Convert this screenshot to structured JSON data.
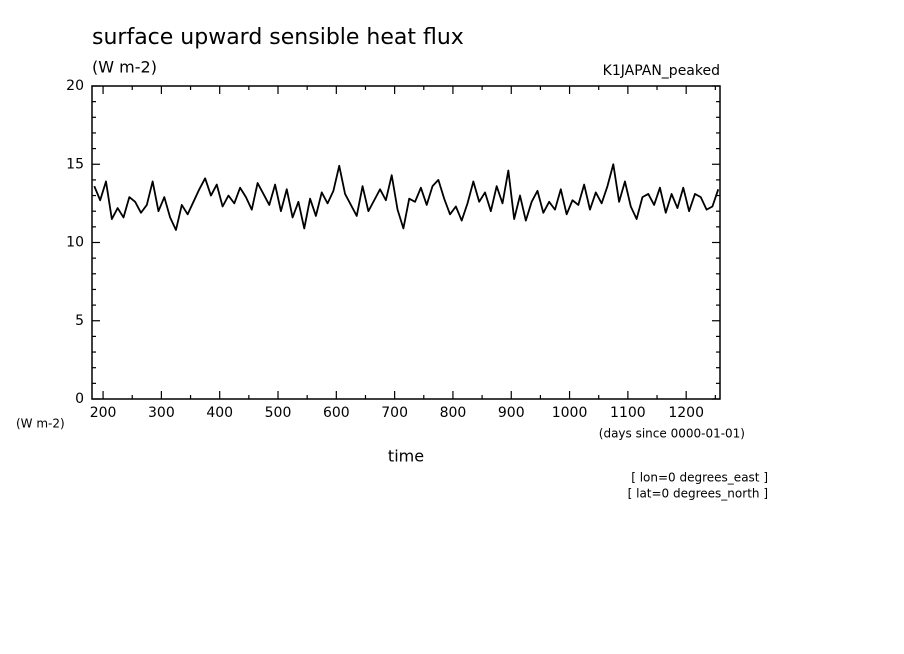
{
  "chart_data": {
    "type": "line",
    "title": "surface upward sensible heat flux",
    "subtitle": "(W m-2)",
    "annotation_right": "K1JAPAN_peaked",
    "ylabel": "(W m-2)",
    "xunits": "(days since 0000-01-01)",
    "xlabel": "time",
    "notes": [
      "[ lon=0 degrees_east ]",
      "[ lat=0 degrees_north ]"
    ],
    "color": "#000000",
    "xlim": [
      181,
      1258
    ],
    "ylim": [
      0,
      20
    ],
    "xticks": [
      200,
      300,
      400,
      500,
      600,
      700,
      800,
      900,
      1000,
      1100,
      1200
    ],
    "yticks": [
      0,
      5,
      10,
      15,
      20
    ],
    "xminorticks": [
      250,
      350,
      450,
      550,
      650,
      750,
      850,
      950,
      1050,
      1150,
      1250
    ],
    "yminorticks": [
      1,
      2,
      3,
      4,
      6,
      7,
      8,
      9,
      11,
      12,
      13,
      14,
      16,
      17,
      18,
      19
    ],
    "x": [
      185,
      195,
      205,
      215,
      225,
      235,
      245,
      255,
      265,
      275,
      285,
      295,
      305,
      315,
      325,
      335,
      345,
      355,
      365,
      375,
      385,
      395,
      405,
      415,
      425,
      435,
      445,
      455,
      465,
      475,
      485,
      495,
      505,
      515,
      525,
      535,
      545,
      555,
      565,
      575,
      585,
      595,
      605,
      615,
      625,
      635,
      645,
      655,
      665,
      675,
      685,
      695,
      705,
      715,
      725,
      735,
      745,
      755,
      765,
      775,
      785,
      795,
      805,
      815,
      825,
      835,
      845,
      855,
      865,
      875,
      885,
      895,
      905,
      915,
      925,
      935,
      945,
      955,
      965,
      975,
      985,
      995,
      1005,
      1015,
      1025,
      1035,
      1045,
      1055,
      1065,
      1075,
      1085,
      1095,
      1105,
      1115,
      1125,
      1135,
      1145,
      1155,
      1165,
      1175,
      1185,
      1195,
      1205,
      1215,
      1225,
      1235,
      1245,
      1255
    ],
    "values": [
      13.6,
      12.7,
      13.9,
      11.5,
      12.2,
      11.6,
      12.9,
      12.6,
      11.9,
      12.4,
      13.9,
      12.0,
      12.9,
      11.6,
      10.8,
      12.4,
      11.8,
      12.6,
      13.4,
      14.1,
      13.0,
      13.7,
      12.3,
      13.0,
      12.5,
      13.5,
      12.9,
      12.1,
      13.8,
      13.1,
      12.4,
      13.7,
      12.0,
      13.4,
      11.6,
      12.6,
      10.9,
      12.8,
      11.7,
      13.2,
      12.5,
      13.3,
      14.9,
      13.1,
      12.4,
      11.7,
      13.6,
      12.0,
      12.7,
      13.4,
      12.7,
      14.3,
      12.1,
      10.9,
      12.8,
      12.6,
      13.5,
      12.4,
      13.6,
      14.0,
      12.8,
      11.8,
      12.3,
      11.4,
      12.5,
      13.9,
      12.6,
      13.2,
      12.0,
      13.6,
      12.5,
      14.6,
      11.5,
      13.0,
      11.4,
      12.6,
      13.3,
      11.9,
      12.6,
      12.1,
      13.4,
      11.8,
      12.7,
      12.4,
      13.7,
      12.1,
      13.2,
      12.5,
      13.6,
      15.0,
      12.6,
      13.9,
      12.3,
      11.5,
      12.9,
      13.1,
      12.4,
      13.5,
      11.9,
      13.1,
      12.2,
      13.5,
      12.0,
      13.1,
      12.9,
      12.1,
      12.3,
      13.4
    ]
  }
}
